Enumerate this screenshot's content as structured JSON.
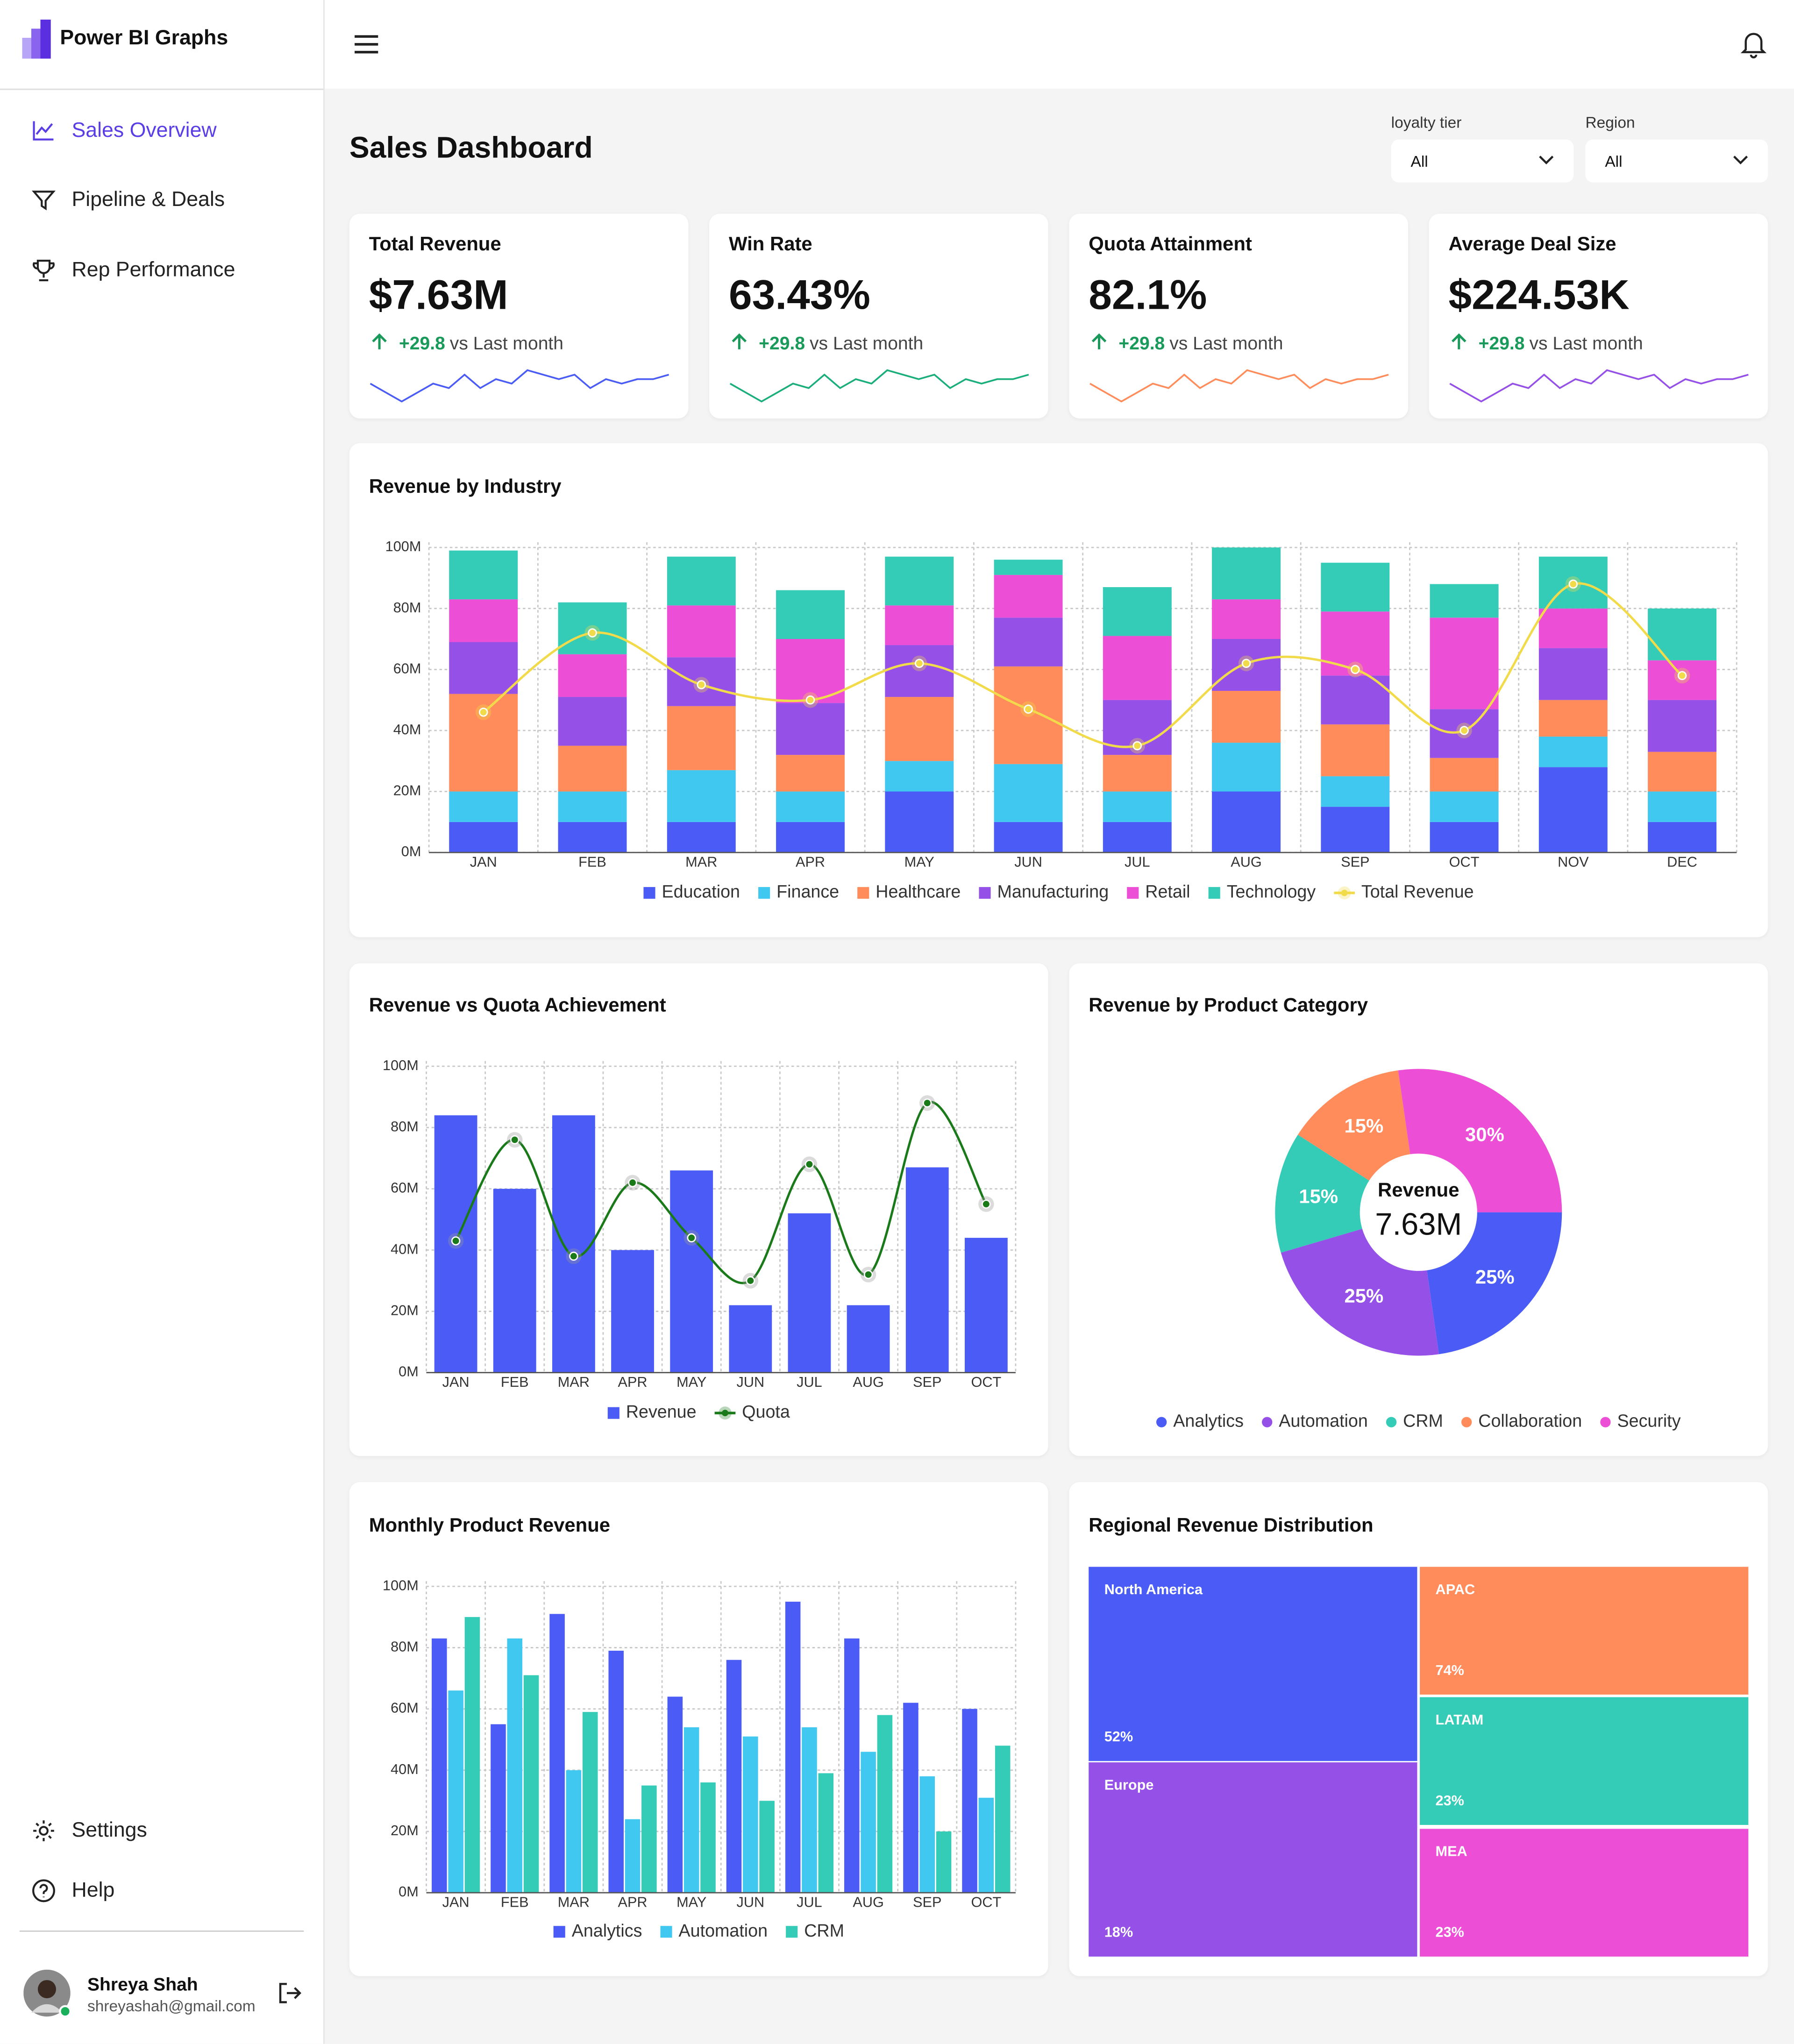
{
  "sidebar": {
    "brand": "Power BI Graphs",
    "nav": [
      "Sales Overview",
      "Pipeline & Deals",
      "Rep Performance"
    ],
    "footer_nav": [
      "Settings",
      "Help"
    ],
    "user": {
      "name": "Shreya Shah",
      "email": "shreyashah@gmail.com"
    }
  },
  "header": {
    "title": "Sales Dashboard",
    "filters": [
      {
        "label": "loyalty tier",
        "value": "All"
      },
      {
        "label": "Region",
        "value": "All"
      }
    ]
  },
  "kpis": [
    {
      "title": "Total Revenue",
      "value": "$7.63M",
      "change": "+29.8",
      "comparison": "vs Last month",
      "color": "#4a5cf5",
      "trend": [
        5,
        3,
        1,
        3,
        5,
        4,
        7,
        4,
        6,
        5,
        8,
        7,
        6,
        7,
        4,
        6,
        5,
        6,
        6,
        7
      ]
    },
    {
      "title": "Win Rate",
      "value": "63.43%",
      "change": "+29.8",
      "comparison": "vs Last month",
      "color": "#1aaf7a",
      "trend": [
        5,
        3,
        1,
        3,
        5,
        4,
        7,
        4,
        6,
        5,
        8,
        7,
        6,
        7,
        4,
        6,
        5,
        6,
        6,
        7
      ]
    },
    {
      "title": "Quota Attainment",
      "value": "82.1%",
      "change": "+29.8",
      "comparison": "vs Last month",
      "color": "#ff8c5a",
      "trend": [
        5,
        3,
        1,
        3,
        5,
        4,
        7,
        4,
        6,
        5,
        8,
        7,
        6,
        7,
        4,
        6,
        5,
        6,
        6,
        7
      ]
    },
    {
      "title": "Average Deal Size",
      "value": "$224.53K",
      "change": "+29.8",
      "comparison": "vs Last month",
      "color": "#9550e8",
      "trend": [
        5,
        3,
        1,
        3,
        5,
        4,
        7,
        4,
        6,
        5,
        8,
        7,
        6,
        7,
        4,
        6,
        5,
        6,
        6,
        7
      ]
    }
  ],
  "chart_data": [
    {
      "type": "bar",
      "stacked": true,
      "grid": true,
      "title": "Revenue by Industry",
      "categories": [
        "JAN",
        "FEB",
        "MAR",
        "APR",
        "MAY",
        "JUN",
        "JUL",
        "AUG",
        "SEP",
        "OCT",
        "NOV",
        "DEC"
      ],
      "series": [
        {
          "name": "Education",
          "color": "#4a5cf5",
          "values": [
            10,
            10,
            10,
            10,
            20,
            10,
            10,
            20,
            15,
            10,
            28,
            10
          ]
        },
        {
          "name": "Finance",
          "color": "#40c8f0",
          "values": [
            10,
            10,
            17,
            10,
            10,
            19,
            10,
            16,
            10,
            10,
            10,
            10
          ]
        },
        {
          "name": "Healthcare",
          "color": "#ff8c5a",
          "values": [
            32,
            15,
            21,
            12,
            21,
            32,
            12,
            17,
            17,
            11,
            12,
            13
          ]
        },
        {
          "name": "Manufacturing",
          "color": "#9550e8",
          "values": [
            17,
            16,
            16,
            17,
            17,
            16,
            18,
            17,
            16,
            16,
            17,
            17
          ]
        },
        {
          "name": "Retail",
          "color": "#ec4fd6",
          "values": [
            14,
            14,
            17,
            21,
            13,
            14,
            21,
            13,
            21,
            30,
            13,
            13
          ]
        },
        {
          "name": "Technology",
          "color": "#34cbb7",
          "values": [
            16,
            17,
            16,
            16,
            16,
            5,
            16,
            17,
            16,
            11,
            17,
            17
          ]
        },
        {
          "name": "Total Revenue",
          "color": "#f2db4b",
          "type": "line",
          "values": [
            46,
            72,
            55,
            50,
            62,
            47,
            35,
            62,
            60,
            40,
            88,
            58
          ]
        }
      ],
      "ylim": [
        0,
        100
      ],
      "yticks": [
        {
          "value": 0,
          "label": "0M"
        },
        {
          "value": 20,
          "label": "20M"
        },
        {
          "value": 40,
          "label": "40M"
        },
        {
          "value": 60,
          "label": "60M"
        },
        {
          "value": 80,
          "label": "80M"
        },
        {
          "value": 100,
          "label": "100M"
        }
      ]
    },
    {
      "type": "bar",
      "stacked": false,
      "grid": true,
      "title": "Revenue vs Quota Achievement",
      "categories": [
        "JAN",
        "FEB",
        "MAR",
        "APR",
        "MAY",
        "JUN",
        "JUL",
        "AUG",
        "SEP",
        "OCT"
      ],
      "series": [
        {
          "name": "Revenue",
          "color": "#4a5cf5",
          "values": [
            84,
            60,
            84,
            40,
            66,
            22,
            52,
            22,
            67,
            44
          ]
        },
        {
          "name": "Quota",
          "color": "#1a7a1a",
          "type": "line",
          "values": [
            43,
            76,
            38,
            62,
            44,
            30,
            68,
            32,
            88,
            55
          ]
        }
      ],
      "ylim": [
        0,
        100
      ],
      "yticks": [
        {
          "value": 0,
          "label": "0M"
        },
        {
          "value": 20,
          "label": "20M"
        },
        {
          "value": 40,
          "label": "40M"
        },
        {
          "value": 60,
          "label": "60M"
        },
        {
          "value": 80,
          "label": "80M"
        },
        {
          "value": 100,
          "label": "100M"
        }
      ]
    },
    {
      "type": "pie",
      "title": "Revenue by Product Category",
      "center_label": "Revenue",
      "center_value": "7.63M",
      "categories": [
        "Analytics",
        "Automation",
        "CRM",
        "Collaboration",
        "Security"
      ],
      "values": [
        25,
        25,
        15,
        15,
        30
      ],
      "value_labels": [
        "25%",
        "25%",
        "15%",
        "15%",
        "30%"
      ],
      "colors": [
        "#4a5cf5",
        "#9550e8",
        "#34cbb7",
        "#ff8c5a",
        "#ec4fd6"
      ]
    },
    {
      "type": "bar",
      "stacked": false,
      "grid": true,
      "title": "Monthly Product Revenue",
      "categories": [
        "JAN",
        "FEB",
        "MAR",
        "APR",
        "MAY",
        "JUN",
        "JUL",
        "AUG",
        "SEP",
        "OCT"
      ],
      "series": [
        {
          "name": "Analytics",
          "color": "#4a5cf5",
          "values": [
            83,
            55,
            91,
            79,
            64,
            76,
            95,
            83,
            62,
            60
          ]
        },
        {
          "name": "Automation",
          "color": "#40c8f0",
          "values": [
            66,
            83,
            40,
            24,
            54,
            51,
            54,
            46,
            38,
            31
          ]
        },
        {
          "name": "CRM",
          "color": "#34cbb7",
          "values": [
            90,
            71,
            59,
            35,
            36,
            30,
            39,
            58,
            20,
            48
          ]
        }
      ],
      "ylim": [
        0,
        100
      ],
      "yticks": [
        {
          "value": 0,
          "label": "0M"
        },
        {
          "value": 20,
          "label": "20M"
        },
        {
          "value": 40,
          "label": "40M"
        },
        {
          "value": 60,
          "label": "60M"
        },
        {
          "value": 80,
          "label": "80M"
        },
        {
          "value": 100,
          "label": "100M"
        }
      ]
    },
    {
      "type": "treemap",
      "title": "Regional Revenue Distribution",
      "categories": [
        "North America",
        "Europe",
        "APAC",
        "LATAM",
        "MEA"
      ],
      "values": [
        52,
        18,
        74,
        23,
        23
      ],
      "value_labels": [
        "52%",
        "18%",
        "74%",
        "23%",
        "23%"
      ],
      "colors": [
        "#4a5cf5",
        "#9550e8",
        "#ff8c5a",
        "#34cbb7",
        "#ec4fd6"
      ]
    }
  ]
}
